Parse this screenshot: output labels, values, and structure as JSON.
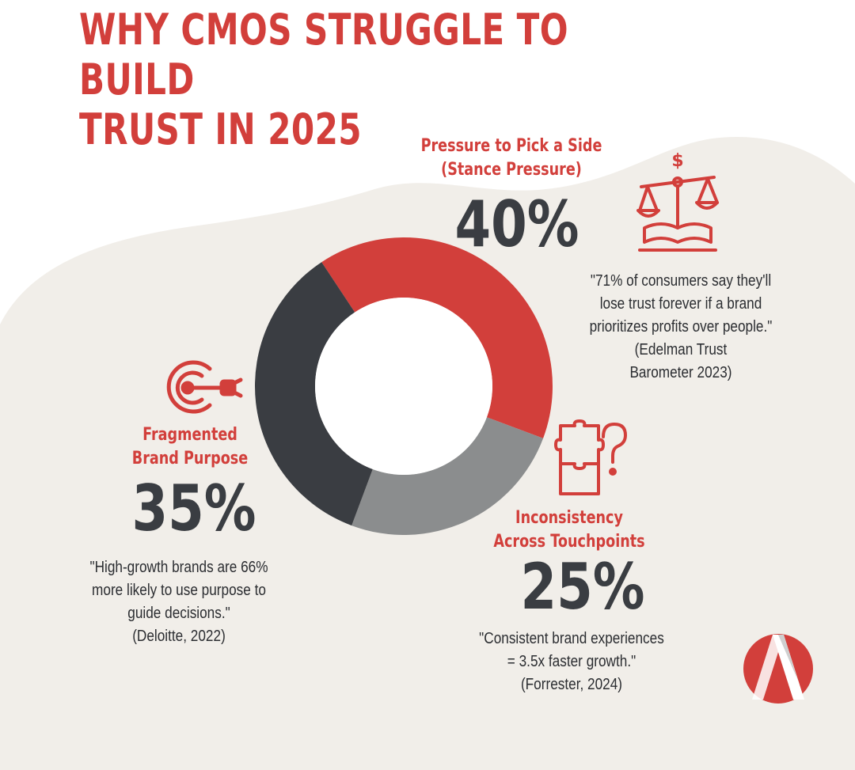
{
  "title_lines": [
    "WHY CMOS STRUGGLE TO BUILD",
    "TRUST IN 2025"
  ],
  "colors": {
    "brand_red": "#d23f3b",
    "dark_gray": "#3a3d42",
    "mid_gray": "#8b8d8e",
    "background_blob": "#f1eee9"
  },
  "chart_data": {
    "type": "pie",
    "style": "donut",
    "categories": [
      "Pressure to Pick a Side (Stance Pressure)",
      "Inconsistency Across Touchpoints",
      "Fragmented Brand Purpose"
    ],
    "values": [
      40,
      25,
      35
    ],
    "unit": "%",
    "slice_colors": [
      "#d23f3b",
      "#8b8d8e",
      "#3a3d42"
    ]
  },
  "segments": {
    "stance": {
      "label_lines": [
        "Pressure to Pick a Side",
        "(Stance Pressure)"
      ],
      "value_text": "40%",
      "quote_lines": [
        "\"71% of consumers say they'll",
        "lose trust forever if a brand",
        "prioritizes profits over people.\"",
        "(Edelman Trust",
        "Barometer 2023)"
      ],
      "icon": "scales-of-justice-dollar-icon"
    },
    "purpose": {
      "label_lines": [
        "Fragmented",
        "Brand Purpose"
      ],
      "value_text": "35%",
      "quote_lines": [
        "\"High-growth brands are 66%",
        "more likely to use purpose to",
        "guide decisions.\"",
        "(Deloitte, 2022)"
      ],
      "icon": "target-dart-icon"
    },
    "touchpoints": {
      "label_lines": [
        "Inconsistency",
        "Across Touchpoints"
      ],
      "value_text": "25%",
      "quote_lines": [
        "\"Consistent brand experiences",
        "= 3.5x faster growth.\"",
        "(Forrester, 2024)"
      ],
      "icon": "puzzle-question-icon"
    }
  },
  "logo": {
    "icon": "letter-a-logo-icon"
  }
}
